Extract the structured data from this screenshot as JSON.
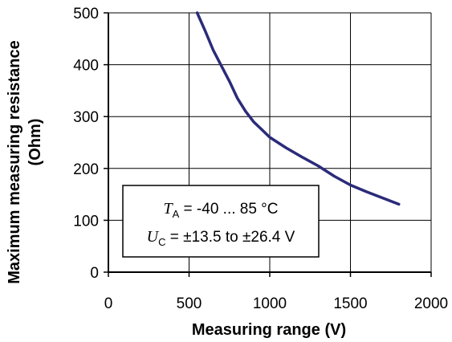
{
  "chart_data": {
    "type": "line",
    "title": "",
    "xlabel": "Measuring range  (V)",
    "ylabel_line1": "Maximum measuring resistance",
    "ylabel_line2": "(Ohm)",
    "xlim": [
      0,
      2000
    ],
    "ylim": [
      0,
      500
    ],
    "xticks": [
      0,
      500,
      1000,
      1500,
      2000
    ],
    "yticks": [
      0,
      100,
      200,
      300,
      400,
      500
    ],
    "xtick_labels": [
      "0",
      "500",
      "1000",
      "1500",
      "2000"
    ],
    "ytick_labels": [
      "0",
      "100",
      "200",
      "300",
      "400",
      "500"
    ],
    "grid": true,
    "series": [
      {
        "color": "#2b2b7a",
        "x": [
          550,
          600,
          650,
          700,
          750,
          800,
          850,
          900,
          950,
          1000,
          1100,
          1200,
          1300,
          1400,
          1500,
          1600,
          1700,
          1800
        ],
        "y": [
          500,
          465,
          428,
          398,
          368,
          335,
          310,
          290,
          275,
          260,
          240,
          222,
          205,
          185,
          168,
          155,
          143,
          131
        ]
      }
    ],
    "annotation": {
      "line1_var": "T",
      "line1_sub": "A",
      "line1_rest": " = -40 ... 85 °C",
      "line2_var": "U",
      "line2_sub": "C",
      "line2_rest": " = ±13.5 to ±26.4 V"
    }
  }
}
